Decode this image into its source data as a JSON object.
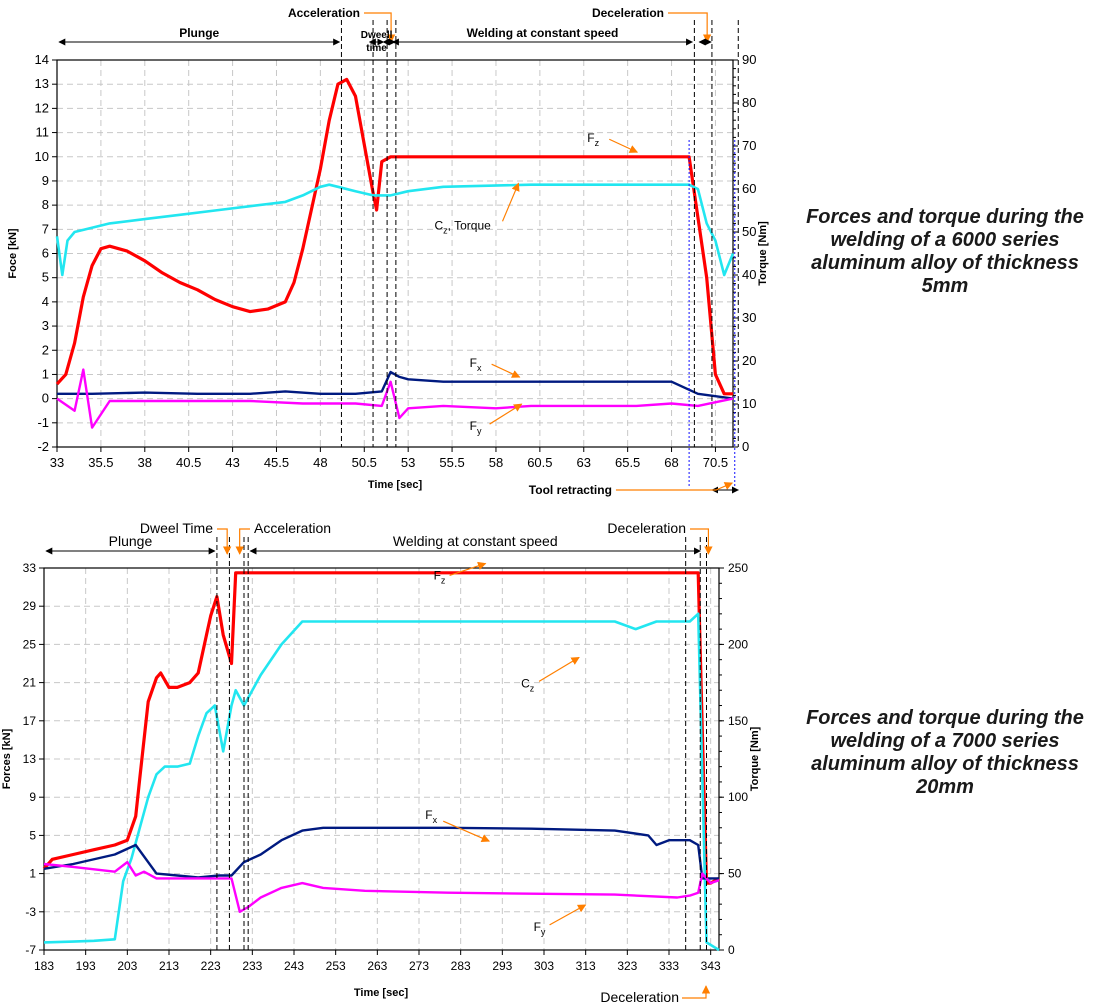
{
  "chart_data": [
    {
      "type": "line",
      "caption": "Forces and torque during the welding of a 6000 series aluminum alloy of thickness 5mm",
      "xlabel": "Time [sec]",
      "ylabel": "Foce [kN]",
      "y2label": "Torque [Nm]",
      "xlim": [
        33,
        71.5
      ],
      "ylim": [
        -2,
        14
      ],
      "y2lim": [
        0,
        90
      ],
      "xticks": [
        "33",
        "35.5",
        "38",
        "40.5",
        "43",
        "45.5",
        "48",
        "50.5",
        "53",
        "55.5",
        "58",
        "60.5",
        "63",
        "65.5",
        "68",
        "70.5"
      ],
      "yticks": [
        "-2",
        "-1",
        "0",
        "1",
        "2",
        "3",
        "4",
        "5",
        "6",
        "7",
        "8",
        "9",
        "10",
        "11",
        "12",
        "13",
        "14"
      ],
      "y2ticks": [
        "0",
        "10",
        "20",
        "30",
        "40",
        "50",
        "60",
        "70",
        "80",
        "90"
      ],
      "grid": true,
      "phases": [
        {
          "label": "Plunge",
          "start": 33,
          "end": 49.2
        },
        {
          "label": "Acceleration",
          "start": 49.2,
          "end": 52.0
        },
        {
          "label": "Dweell time",
          "start": 50.8,
          "end": 51.6
        },
        {
          "label": "Welding at constant speed",
          "start": 52.0,
          "end": 69.3
        },
        {
          "label": "Deceleration",
          "start": 69.3,
          "end": 70.3
        },
        {
          "label": "Tool retracting",
          "start": 70.3,
          "end": 71.8
        }
      ],
      "vlines": [
        49.2,
        51.0,
        51.8,
        52.3,
        69.3,
        70.3,
        71.8
      ],
      "series": [
        {
          "name": "Fz",
          "axis": "left",
          "color": "#ff0000",
          "x": [
            33,
            33.5,
            34,
            34.5,
            35,
            35.5,
            36,
            37,
            38,
            39,
            40,
            41,
            42,
            43,
            44,
            45,
            46,
            46.5,
            47,
            48,
            48.5,
            49,
            49.5,
            50,
            50.5,
            51,
            51.2,
            51.5,
            52,
            55,
            60,
            65,
            69,
            70,
            70.5,
            71,
            71.5
          ],
          "y": [
            0.6,
            1.0,
            2.3,
            4.2,
            5.5,
            6.2,
            6.3,
            6.1,
            5.7,
            5.2,
            4.8,
            4.5,
            4.1,
            3.8,
            3.6,
            3.7,
            4.0,
            4.8,
            6.2,
            9.5,
            11.5,
            13.0,
            13.2,
            12.5,
            10.5,
            8.5,
            7.8,
            9.8,
            10.0,
            10.0,
            10.0,
            10.0,
            10.0,
            5.0,
            1.0,
            0.2,
            0.2
          ]
        },
        {
          "name": "Cz, Torque",
          "axis": "right",
          "color": "#22e6f0",
          "x": [
            33,
            33.3,
            33.6,
            34,
            36,
            38,
            40,
            42,
            44,
            46,
            47,
            48,
            48.5,
            49,
            50,
            51,
            52,
            53,
            55,
            60,
            65,
            69,
            69.5,
            70,
            70.5,
            71,
            71.5
          ],
          "y": [
            49,
            40,
            48,
            50,
            52,
            53,
            54,
            55,
            56,
            57,
            58.5,
            60.5,
            61,
            60.5,
            59.5,
            58.5,
            58.5,
            59.5,
            60.5,
            61,
            61,
            61,
            60,
            52,
            48,
            40,
            45
          ]
        },
        {
          "name": "Fx",
          "axis": "left",
          "color": "#001a80",
          "x": [
            33,
            35,
            38,
            41,
            44,
            46,
            48,
            50,
            51.5,
            52,
            52.5,
            53,
            55,
            58,
            60,
            63,
            66,
            68,
            69.5,
            70.5,
            71.5
          ],
          "y": [
            0.2,
            0.2,
            0.25,
            0.2,
            0.2,
            0.3,
            0.2,
            0.2,
            0.3,
            1.1,
            0.9,
            0.8,
            0.7,
            0.7,
            0.7,
            0.7,
            0.7,
            0.7,
            0.2,
            0.1,
            0.0
          ]
        },
        {
          "name": "Fy",
          "axis": "left",
          "color": "#ff00ff",
          "x": [
            33,
            34,
            34.5,
            35,
            36,
            38,
            41,
            44,
            47,
            50,
            51.5,
            52,
            52.5,
            53,
            55,
            58,
            60,
            63,
            66,
            68,
            69.5,
            71.5
          ],
          "y": [
            0.0,
            -0.5,
            1.2,
            -1.2,
            -0.1,
            -0.1,
            -0.1,
            -0.1,
            -0.2,
            -0.2,
            -0.3,
            0.7,
            -0.8,
            -0.4,
            -0.3,
            -0.4,
            -0.3,
            -0.3,
            -0.3,
            -0.2,
            -0.3,
            0.0
          ]
        }
      ],
      "annotations": [
        {
          "text": "F",
          "sub": "z",
          "x": 63.2,
          "y": 10.6
        },
        {
          "text": "C",
          "sub": "z",
          "extra": ", Torque",
          "x": 54.5,
          "y": 7.0
        },
        {
          "text": "F",
          "sub": "x",
          "x": 56.5,
          "y": 1.3
        },
        {
          "text": "F",
          "sub": "y",
          "x": 56.5,
          "y": -1.3
        }
      ]
    },
    {
      "type": "line",
      "caption": "Forces and torque during the welding of a 7000 series aluminum alloy of thickness 20mm",
      "xlabel": "Time [sec]",
      "ylabel": "Forces [kN]",
      "y2label": "Torque [Nm]",
      "xlim": [
        183,
        345
      ],
      "ylim": [
        -7,
        33
      ],
      "y2lim": [
        0,
        250
      ],
      "xticks": [
        "183",
        "193",
        "203",
        "213",
        "223",
        "233",
        "243",
        "253",
        "263",
        "273",
        "283",
        "293",
        "303",
        "313",
        "323",
        "333",
        "343"
      ],
      "yticks": [
        "-7",
        "-3",
        "1",
        "5",
        "9",
        "13",
        "17",
        "21",
        "25",
        "29",
        "33"
      ],
      "y2ticks": [
        "0",
        "50",
        "100",
        "150",
        "200",
        "250"
      ],
      "grid": true,
      "phases": [
        {
          "label": "Plunge",
          "start": 183,
          "end": 224.5
        },
        {
          "label": "Dweel Time",
          "start": 224.5,
          "end": 227.5
        },
        {
          "label": "Acceleration",
          "start": 227.5,
          "end": 232
        },
        {
          "label": "Welding at constant speed",
          "start": 232,
          "end": 341
        },
        {
          "label": "Deceleration",
          "start": 341,
          "end": 343
        }
      ],
      "vlines": [
        224.5,
        227.5,
        231,
        232,
        337,
        340.5,
        342
      ],
      "series": [
        {
          "name": "Fz",
          "axis": "left",
          "color": "#ff0000",
          "x": [
            183,
            185,
            190,
            195,
            200,
            203,
            205,
            206,
            208,
            210,
            211,
            213,
            215,
            218,
            220,
            222,
            223,
            224.5,
            226,
            228,
            229,
            232,
            250,
            300,
            340,
            341,
            342,
            343,
            345
          ],
          "y": [
            1.5,
            2.5,
            3,
            3.5,
            4,
            4.5,
            7,
            11,
            19,
            21.5,
            22,
            20.5,
            20.5,
            21,
            22,
            26,
            28,
            30,
            26,
            23,
            32.5,
            32.5,
            32.5,
            32.5,
            32.5,
            16,
            0,
            0,
            0.5
          ]
        },
        {
          "name": "Cz",
          "axis": "right",
          "color": "#22e6f0",
          "x": [
            183,
            190,
            195,
            200,
            202,
            204,
            206,
            208,
            210,
            212,
            215,
            218,
            220,
            222,
            224,
            226,
            228,
            229,
            231,
            235,
            240,
            245,
            250,
            260,
            280,
            300,
            310,
            320,
            325,
            330,
            338,
            340,
            342,
            345
          ],
          "y": [
            5,
            5.5,
            6,
            7,
            45,
            60,
            80,
            100,
            115,
            120,
            120,
            122,
            140,
            155,
            160,
            130,
            160,
            170,
            160,
            180,
            200,
            215,
            215,
            215,
            215,
            215,
            215,
            215,
            210,
            215,
            215,
            220,
            5,
            0
          ]
        },
        {
          "name": "Fx",
          "axis": "left",
          "color": "#001a80",
          "x": [
            183,
            190,
            200,
            205,
            210,
            215,
            220,
            225,
            228,
            231,
            235,
            240,
            245,
            250,
            260,
            280,
            300,
            320,
            328,
            330,
            333,
            338,
            340,
            341,
            343,
            345
          ],
          "y": [
            1.5,
            2.0,
            3.0,
            4.0,
            1.0,
            0.8,
            0.6,
            0.8,
            0.8,
            2.2,
            3,
            4.5,
            5.5,
            5.8,
            5.8,
            5.8,
            5.7,
            5.5,
            5.0,
            4.0,
            4.5,
            4.5,
            4.0,
            0.5,
            0.5,
            0.5
          ]
        },
        {
          "name": "Fy",
          "axis": "left",
          "color": "#ff00ff",
          "x": [
            183,
            190,
            200,
            203,
            205,
            207,
            210,
            215,
            220,
            225,
            228,
            230,
            232,
            235,
            240,
            245,
            250,
            260,
            280,
            300,
            320,
            335,
            338,
            340,
            341,
            343,
            345
          ],
          "y": [
            2.0,
            1.7,
            1.2,
            2.2,
            0.8,
            1.2,
            0.5,
            0.5,
            0.5,
            0.5,
            0.5,
            -3,
            -2.5,
            -1.5,
            -0.5,
            0.0,
            -0.5,
            -0.8,
            -1.0,
            -1.1,
            -1.2,
            -1.5,
            -1.3,
            -1.0,
            1.0,
            0.0,
            0.3
          ]
        }
      ],
      "annotations": [
        {
          "text": "F",
          "sub": "z",
          "x": 276.5,
          "y": 31.8
        },
        {
          "text": "C",
          "sub": "z",
          "x": 297.5,
          "y": 20.5
        },
        {
          "text": "F",
          "sub": "x",
          "x": 274.5,
          "y": 6.7
        },
        {
          "text": "F",
          "sub": "y",
          "x": 300.5,
          "y": -5.0
        }
      ]
    }
  ]
}
